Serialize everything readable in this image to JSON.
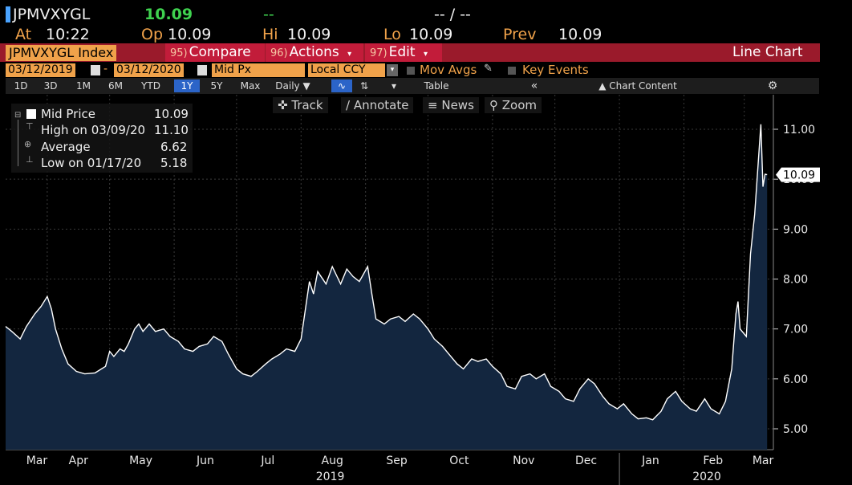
{
  "header": {
    "ticker": "JPMVXYGL",
    "last_price": "10.09",
    "change": "--",
    "change_pct": "-- / --",
    "at_label": "At",
    "time": "10:22",
    "open_label": "Op",
    "open": "10.09",
    "high_label": "Hi",
    "high": "10.09",
    "low_label": "Lo",
    "low": "10.09",
    "prev_label": "Prev",
    "prev": "10.09"
  },
  "menu": {
    "security": "JPMVXYGL Index",
    "compare_num": "95)",
    "compare": "Compare",
    "actions_num": "96)",
    "actions": "Actions",
    "edit_num": "97)",
    "edit": "Edit",
    "chart_type": "Line Chart"
  },
  "range": {
    "start_date": "03/12/2019",
    "end_date": "03/12/2020",
    "field": "Mid Px",
    "currency": "Local CCY",
    "mov_avgs": "Mov Avgs",
    "key_events": "Key Events"
  },
  "periods": [
    "1D",
    "3D",
    "1M",
    "6M",
    "YTD",
    "1Y",
    "5Y",
    "Max"
  ],
  "active_period": "1Y",
  "frequency": "Daily",
  "table_label": "Table",
  "chart_content_label": "Chart Content",
  "tools": {
    "track": "Track",
    "annotate": "Annotate",
    "news": "News",
    "zoom": "Zoom"
  },
  "legend": {
    "mid_label": "Mid Price",
    "mid_value": "10.09",
    "high_label": "High on 03/09/20",
    "high_value": "11.10",
    "avg_label": "Average",
    "avg_value": "6.62",
    "low_label": "Low on 01/17/20",
    "low_value": "5.18"
  },
  "last_value_tag": "10.09",
  "colors": {
    "area_fill": "#13263f",
    "line": "#ffffff",
    "accent_orange": "#f0a24a",
    "menu_red": "#9a1a2b",
    "green": "#3fd24f"
  },
  "chart_data": {
    "type": "area",
    "title": "",
    "xlabel": "",
    "ylabel": "",
    "ylim": [
      4.6,
      11.6
    ],
    "yticks": [
      "5.00",
      "6.00",
      "7.00",
      "8.00",
      "9.00",
      "10.00",
      "11.00"
    ],
    "x_tick_labels": [
      "Mar",
      "Apr",
      "May",
      "Jun",
      "Jul",
      "Aug",
      "Sep",
      "Oct",
      "Nov",
      "Dec",
      "Jan",
      "Feb",
      "Mar"
    ],
    "year_labels": [
      "2019",
      "2020"
    ],
    "series": [
      {
        "values_by_date": [
          [
            "2019-03-12",
            7.05
          ],
          [
            "2019-03-15",
            6.95
          ],
          [
            "2019-03-19",
            6.8
          ],
          [
            "2019-03-22",
            7.05
          ],
          [
            "2019-03-26",
            7.3
          ],
          [
            "2019-03-29",
            7.45
          ],
          [
            "2019-04-01",
            7.65
          ],
          [
            "2019-04-03",
            7.4
          ],
          [
            "2019-04-05",
            7.0
          ],
          [
            "2019-04-08",
            6.6
          ],
          [
            "2019-04-11",
            6.3
          ],
          [
            "2019-04-15",
            6.15
          ],
          [
            "2019-04-19",
            6.1
          ],
          [
            "2019-04-24",
            6.12
          ],
          [
            "2019-04-29",
            6.25
          ],
          [
            "2019-05-01",
            6.55
          ],
          [
            "2019-05-03",
            6.45
          ],
          [
            "2019-05-06",
            6.6
          ],
          [
            "2019-05-08",
            6.55
          ],
          [
            "2019-05-10",
            6.7
          ],
          [
            "2019-05-13",
            7.0
          ],
          [
            "2019-05-15",
            7.1
          ],
          [
            "2019-05-17",
            6.95
          ],
          [
            "2019-05-20",
            7.1
          ],
          [
            "2019-05-23",
            6.95
          ],
          [
            "2019-05-27",
            7.0
          ],
          [
            "2019-05-30",
            6.85
          ],
          [
            "2019-06-03",
            6.75
          ],
          [
            "2019-06-06",
            6.6
          ],
          [
            "2019-06-10",
            6.55
          ],
          [
            "2019-06-13",
            6.65
          ],
          [
            "2019-06-17",
            6.7
          ],
          [
            "2019-06-20",
            6.85
          ],
          [
            "2019-06-24",
            6.75
          ],
          [
            "2019-06-27",
            6.5
          ],
          [
            "2019-07-01",
            6.2
          ],
          [
            "2019-07-04",
            6.1
          ],
          [
            "2019-07-08",
            6.05
          ],
          [
            "2019-07-11",
            6.15
          ],
          [
            "2019-07-15",
            6.3
          ],
          [
            "2019-07-18",
            6.4
          ],
          [
            "2019-07-22",
            6.5
          ],
          [
            "2019-07-25",
            6.6
          ],
          [
            "2019-07-29",
            6.55
          ],
          [
            "2019-08-01",
            6.8
          ],
          [
            "2019-08-05",
            7.95
          ],
          [
            "2019-08-07",
            7.7
          ],
          [
            "2019-08-09",
            8.15
          ],
          [
            "2019-08-13",
            7.9
          ],
          [
            "2019-08-16",
            8.25
          ],
          [
            "2019-08-20",
            7.9
          ],
          [
            "2019-08-23",
            8.2
          ],
          [
            "2019-08-26",
            8.05
          ],
          [
            "2019-08-29",
            7.95
          ],
          [
            "2019-09-02",
            8.25
          ],
          [
            "2019-09-04",
            7.7
          ],
          [
            "2019-09-06",
            7.2
          ],
          [
            "2019-09-10",
            7.1
          ],
          [
            "2019-09-13",
            7.2
          ],
          [
            "2019-09-17",
            7.25
          ],
          [
            "2019-09-20",
            7.15
          ],
          [
            "2019-09-24",
            7.3
          ],
          [
            "2019-09-27",
            7.2
          ],
          [
            "2019-10-01",
            7.0
          ],
          [
            "2019-10-04",
            6.8
          ],
          [
            "2019-10-08",
            6.65
          ],
          [
            "2019-10-11",
            6.5
          ],
          [
            "2019-10-15",
            6.3
          ],
          [
            "2019-10-18",
            6.2
          ],
          [
            "2019-10-22",
            6.4
          ],
          [
            "2019-10-25",
            6.35
          ],
          [
            "2019-10-29",
            6.4
          ],
          [
            "2019-11-01",
            6.25
          ],
          [
            "2019-11-05",
            6.1
          ],
          [
            "2019-11-08",
            5.85
          ],
          [
            "2019-11-12",
            5.8
          ],
          [
            "2019-11-15",
            6.05
          ],
          [
            "2019-11-19",
            6.1
          ],
          [
            "2019-11-22",
            6.0
          ],
          [
            "2019-11-26",
            6.1
          ],
          [
            "2019-11-29",
            5.85
          ],
          [
            "2019-12-03",
            5.75
          ],
          [
            "2019-12-06",
            5.6
          ],
          [
            "2019-12-10",
            5.55
          ],
          [
            "2019-12-13",
            5.8
          ],
          [
            "2019-12-17",
            6.0
          ],
          [
            "2019-12-20",
            5.9
          ],
          [
            "2019-12-24",
            5.65
          ],
          [
            "2019-12-27",
            5.5
          ],
          [
            "2019-12-31",
            5.4
          ],
          [
            "2020-01-03",
            5.5
          ],
          [
            "2020-01-07",
            5.3
          ],
          [
            "2020-01-10",
            5.2
          ],
          [
            "2020-01-14",
            5.22
          ],
          [
            "2020-01-17",
            5.18
          ],
          [
            "2020-01-21",
            5.35
          ],
          [
            "2020-01-24",
            5.6
          ],
          [
            "2020-01-28",
            5.75
          ],
          [
            "2020-01-31",
            5.55
          ],
          [
            "2020-02-04",
            5.4
          ],
          [
            "2020-02-07",
            5.35
          ],
          [
            "2020-02-11",
            5.6
          ],
          [
            "2020-02-14",
            5.4
          ],
          [
            "2020-02-18",
            5.3
          ],
          [
            "2020-02-21",
            5.55
          ],
          [
            "2020-02-24",
            6.2
          ],
          [
            "2020-02-26",
            7.3
          ],
          [
            "2020-02-27",
            7.55
          ],
          [
            "2020-02-28",
            7.0
          ],
          [
            "2020-03-02",
            6.85
          ],
          [
            "2020-03-04",
            8.5
          ],
          [
            "2020-03-06",
            9.3
          ],
          [
            "2020-03-09",
            11.1
          ],
          [
            "2020-03-10",
            9.85
          ],
          [
            "2020-03-11",
            10.1
          ],
          [
            "2020-03-12",
            10.09
          ]
        ]
      }
    ]
  }
}
